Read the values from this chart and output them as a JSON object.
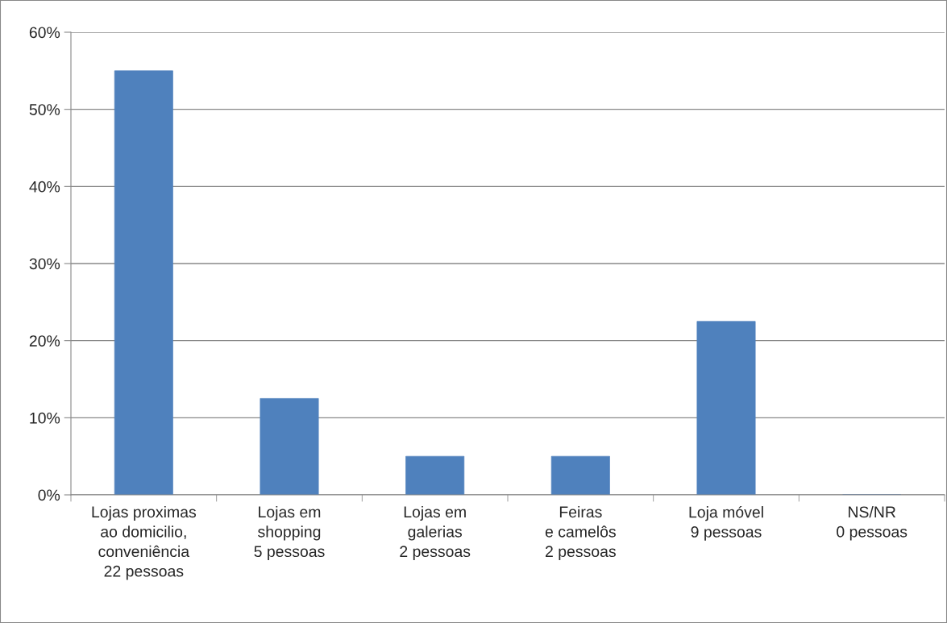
{
  "chart_data": {
    "type": "bar",
    "categories": [
      "Lojas proximas\nao domicilio,\nconveniência\n22 pessoas",
      "Lojas em\nshopping\n5 pessoas",
      "Lojas em\ngalerias\n2 pessoas",
      "Feiras\ne camelôs\n2 pessoas",
      "Loja móvel\n9 pessoas",
      "NS/NR\n0 pessoas"
    ],
    "values": [
      55,
      12.5,
      5,
      5,
      22.5,
      0
    ],
    "color": "#4f81bd",
    "ylim": [
      0,
      60
    ],
    "yticks": [
      {
        "value": 0,
        "label": "0%"
      },
      {
        "value": 10,
        "label": "10%"
      },
      {
        "value": 20,
        "label": "20%"
      },
      {
        "value": 30,
        "label": "30%"
      },
      {
        "value": 40,
        "label": "40%"
      },
      {
        "value": 50,
        "label": "50%"
      },
      {
        "value": 60,
        "label": "60%"
      }
    ],
    "grid": "y"
  }
}
